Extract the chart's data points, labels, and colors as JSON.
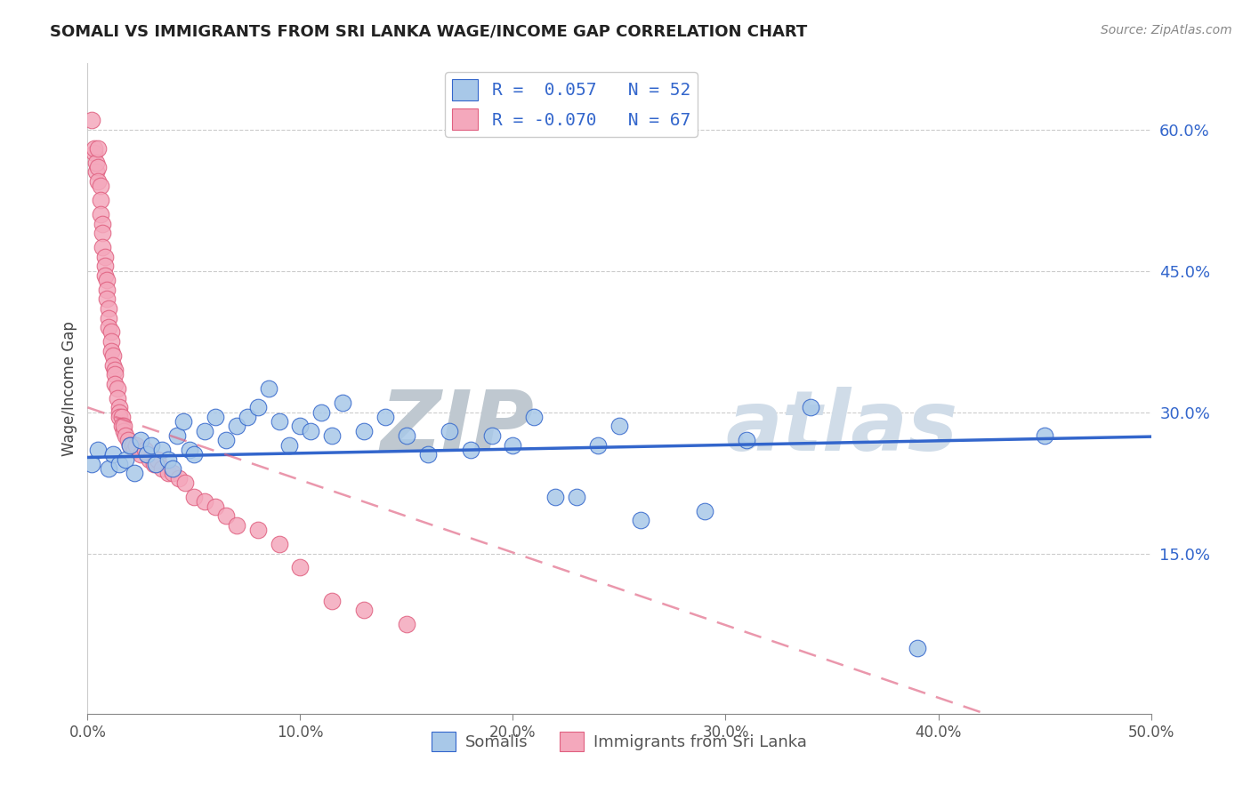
{
  "title": "SOMALI VS IMMIGRANTS FROM SRI LANKA WAGE/INCOME GAP CORRELATION CHART",
  "source": "Source: ZipAtlas.com",
  "ylabel": "Wage/Income Gap",
  "xlim": [
    0.0,
    0.5
  ],
  "ylim": [
    -0.02,
    0.67
  ],
  "yticks": [
    0.15,
    0.3,
    0.45,
    0.6
  ],
  "ytick_labels": [
    "15.0%",
    "30.0%",
    "45.0%",
    "60.0%"
  ],
  "xticks": [
    0.0,
    0.1,
    0.2,
    0.3,
    0.4,
    0.5
  ],
  "blue_color": "#A8C8E8",
  "pink_color": "#F4A8BC",
  "blue_line_color": "#3366CC",
  "pink_line_color": "#E06080",
  "watermark_zip": "ZIP",
  "watermark_atlas": "atlas",
  "watermark_color": "#D0DCE8",
  "somali_x": [
    0.002,
    0.005,
    0.01,
    0.012,
    0.015,
    0.018,
    0.02,
    0.022,
    0.025,
    0.028,
    0.03,
    0.032,
    0.035,
    0.038,
    0.04,
    0.042,
    0.045,
    0.048,
    0.05,
    0.055,
    0.06,
    0.065,
    0.07,
    0.075,
    0.08,
    0.085,
    0.09,
    0.095,
    0.1,
    0.105,
    0.11,
    0.115,
    0.12,
    0.13,
    0.14,
    0.15,
    0.16,
    0.17,
    0.18,
    0.19,
    0.2,
    0.21,
    0.22,
    0.23,
    0.24,
    0.25,
    0.26,
    0.29,
    0.31,
    0.34,
    0.39,
    0.45
  ],
  "somali_y": [
    0.245,
    0.26,
    0.24,
    0.255,
    0.245,
    0.25,
    0.265,
    0.235,
    0.27,
    0.255,
    0.265,
    0.245,
    0.26,
    0.25,
    0.24,
    0.275,
    0.29,
    0.26,
    0.255,
    0.28,
    0.295,
    0.27,
    0.285,
    0.295,
    0.305,
    0.325,
    0.29,
    0.265,
    0.285,
    0.28,
    0.3,
    0.275,
    0.31,
    0.28,
    0.295,
    0.275,
    0.255,
    0.28,
    0.26,
    0.275,
    0.265,
    0.295,
    0.21,
    0.21,
    0.265,
    0.285,
    0.185,
    0.195,
    0.27,
    0.305,
    0.05,
    0.275
  ],
  "srilanka_x": [
    0.002,
    0.003,
    0.003,
    0.004,
    0.004,
    0.005,
    0.005,
    0.005,
    0.006,
    0.006,
    0.006,
    0.007,
    0.007,
    0.007,
    0.008,
    0.008,
    0.008,
    0.009,
    0.009,
    0.009,
    0.01,
    0.01,
    0.01,
    0.011,
    0.011,
    0.011,
    0.012,
    0.012,
    0.013,
    0.013,
    0.013,
    0.014,
    0.014,
    0.015,
    0.015,
    0.015,
    0.016,
    0.016,
    0.017,
    0.017,
    0.018,
    0.019,
    0.02,
    0.021,
    0.022,
    0.023,
    0.025,
    0.027,
    0.029,
    0.031,
    0.033,
    0.035,
    0.038,
    0.04,
    0.043,
    0.046,
    0.05,
    0.055,
    0.06,
    0.065,
    0.07,
    0.08,
    0.09,
    0.1,
    0.115,
    0.13,
    0.15
  ],
  "srilanka_y": [
    0.61,
    0.575,
    0.58,
    0.555,
    0.565,
    0.58,
    0.56,
    0.545,
    0.54,
    0.525,
    0.51,
    0.5,
    0.49,
    0.475,
    0.465,
    0.455,
    0.445,
    0.44,
    0.43,
    0.42,
    0.41,
    0.4,
    0.39,
    0.385,
    0.375,
    0.365,
    0.36,
    0.35,
    0.345,
    0.34,
    0.33,
    0.325,
    0.315,
    0.305,
    0.3,
    0.295,
    0.295,
    0.285,
    0.28,
    0.285,
    0.275,
    0.27,
    0.265,
    0.265,
    0.26,
    0.265,
    0.255,
    0.26,
    0.25,
    0.245,
    0.25,
    0.24,
    0.235,
    0.235,
    0.23,
    0.225,
    0.21,
    0.205,
    0.2,
    0.19,
    0.18,
    0.175,
    0.16,
    0.135,
    0.1,
    0.09,
    0.075
  ]
}
